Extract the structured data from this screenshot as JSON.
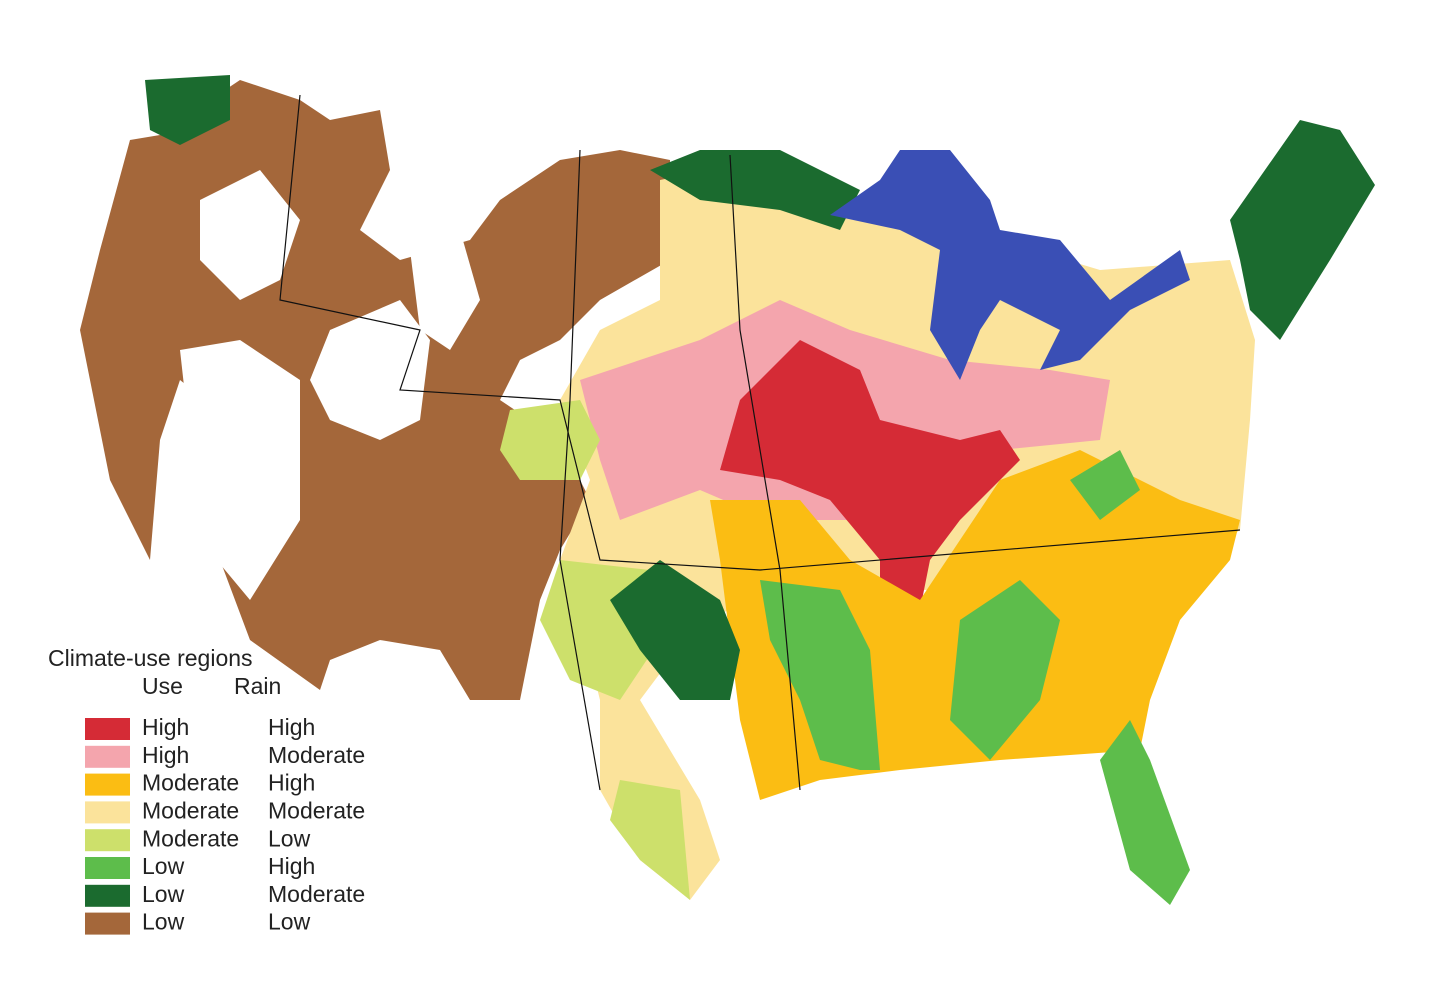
{
  "legend": {
    "title": "Climate-use regions",
    "use_header": "Use",
    "rain_header": "Rain",
    "entries": [
      {
        "use": "High",
        "rain": "High",
        "color": "#d52b36"
      },
      {
        "use": "High",
        "rain": "Moderate",
        "color": "#f4a5ad"
      },
      {
        "use": "Moderate",
        "rain": "High",
        "color": "#fbbd13"
      },
      {
        "use": "Moderate",
        "rain": "Moderate",
        "color": "#fbe39b"
      },
      {
        "use": "Moderate",
        "rain": "Low",
        "color": "#cde06b"
      },
      {
        "use": "Low",
        "rain": "High",
        "color": "#5dbd4b"
      },
      {
        "use": "Low",
        "rain": "Moderate",
        "color": "#1b6b2f"
      },
      {
        "use": "Low",
        "rain": "Low",
        "color": "#a4673a"
      }
    ]
  }
}
